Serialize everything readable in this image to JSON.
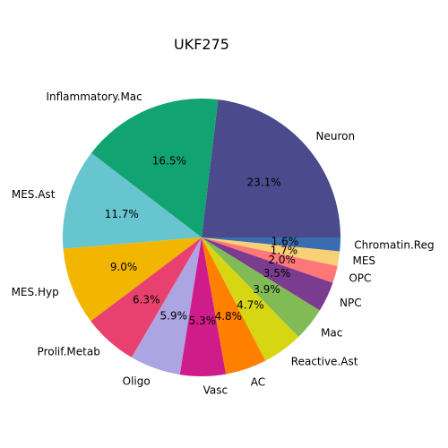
{
  "chart_data": {
    "type": "pie",
    "title": "UKF275",
    "legend": "none",
    "start_angle_deg": 0,
    "direction": "counterclockwise",
    "slices": [
      {
        "label": "Neuron",
        "percent": 23.1,
        "display": "23.1%",
        "color": "#4a4a8c"
      },
      {
        "label": "Inflammatory.Mac",
        "percent": 16.5,
        "display": "16.5%",
        "color": "#12a373"
      },
      {
        "label": "MES.Ast",
        "percent": 11.7,
        "display": "11.7%",
        "color": "#67c5cf"
      },
      {
        "label": "MES.Hyp",
        "percent": 9.0,
        "display": "9.0%",
        "color": "#f2b600"
      },
      {
        "label": "Prolif.Metab",
        "percent": 6.3,
        "display": "6.3%",
        "color": "#e8416f"
      },
      {
        "label": "Oligo",
        "percent": 5.9,
        "display": "5.9%",
        "color": "#ada4e3"
      },
      {
        "label": "Vasc",
        "percent": 5.3,
        "display": "5.3%",
        "color": "#d01c8b"
      },
      {
        "label": "AC",
        "percent": 4.8,
        "display": "4.8%",
        "color": "#ff7f00"
      },
      {
        "label": "Reactive.Ast",
        "percent": 4.7,
        "display": "4.7%",
        "color": "#d6d613"
      },
      {
        "label": "Mac",
        "percent": 3.9,
        "display": "3.9%",
        "color": "#80bb55"
      },
      {
        "label": "NPC",
        "percent": 3.5,
        "display": "3.5%",
        "color": "#7b3b8f"
      },
      {
        "label": "OPC",
        "percent": 2.0,
        "display": "2.0%",
        "color": "#ff7777"
      },
      {
        "label": "MES",
        "percent": 1.7,
        "display": "1.7%",
        "color": "#f8d075"
      },
      {
        "label": "Chromatin.Reg",
        "percent": 1.6,
        "display": "1.6%",
        "color": "#3a6db0"
      }
    ]
  }
}
